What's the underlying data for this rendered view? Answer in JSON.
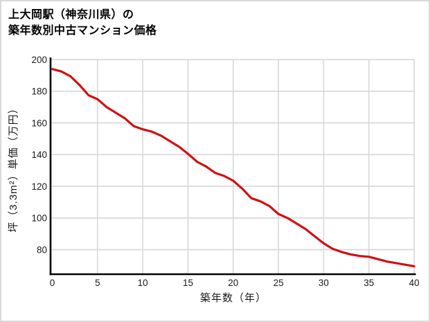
{
  "window": {
    "background": "#ffffff",
    "border_color": "#d9d9d9"
  },
  "title": {
    "line1": "上大岡駅（神奈川県）の",
    "line2": "築年数別中古マンション価格"
  },
  "chart_data": {
    "type": "line",
    "title": "上大岡駅（神奈川県）の築年数別中古マンション価格",
    "xlabel": "築年数（年）",
    "ylabel": "坪（3.3m²）単価（万円）",
    "x_ticks": [
      0,
      5,
      10,
      15,
      20,
      25,
      30,
      35,
      40
    ],
    "y_ticks": [
      80,
      100,
      120,
      140,
      160,
      180,
      200
    ],
    "xlim": [
      0,
      40
    ],
    "ylim": [
      65,
      201
    ],
    "grid": true,
    "legend": false,
    "line_color": "#cc1111",
    "grid_color": "#d9d9d9",
    "axis_color": "#000000",
    "x": [
      0,
      1,
      2,
      3,
      4,
      5,
      6,
      7,
      8,
      9,
      10,
      11,
      12,
      13,
      14,
      15,
      16,
      17,
      18,
      19,
      20,
      21,
      22,
      23,
      24,
      25,
      26,
      27,
      28,
      29,
      30,
      31,
      32,
      33,
      34,
      35,
      36,
      37,
      38,
      39,
      40
    ],
    "values": [
      194,
      192.5,
      189.5,
      184,
      177.5,
      175,
      170,
      166.5,
      163,
      158,
      156,
      154.5,
      152,
      148.5,
      145,
      140.5,
      135.5,
      132.5,
      128.5,
      126.5,
      123.5,
      118.5,
      112.5,
      110.5,
      107.5,
      102.5,
      100,
      96.5,
      93,
      88.5,
      84,
      80.5,
      78.5,
      77,
      76,
      75.5,
      74,
      72.5,
      71.5,
      70.5,
      69.5
    ]
  }
}
